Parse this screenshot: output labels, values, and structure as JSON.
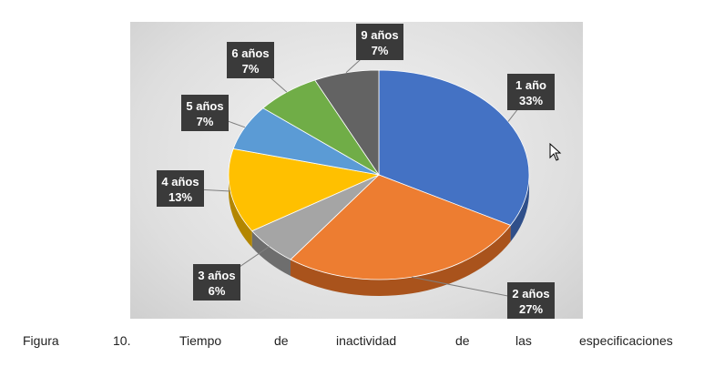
{
  "chart_data": {
    "type": "pie",
    "title": "",
    "slices": [
      {
        "label": "1 año",
        "percent_label": "33%",
        "value": 33,
        "color": "#4472c4",
        "side": "#2f4f8a"
      },
      {
        "label": "2 años",
        "percent_label": "27%",
        "value": 27,
        "color": "#ed7d31",
        "side": "#a9531c"
      },
      {
        "label": "3 años",
        "percent_label": "6%",
        "value": 6,
        "color": "#a5a5a5",
        "side": "#6e6e6e"
      },
      {
        "label": "4 años",
        "percent_label": "13%",
        "value": 13,
        "color": "#ffc000",
        "side": "#b38600"
      },
      {
        "label": "5 años",
        "percent_label": "7%",
        "value": 7,
        "color": "#5b9bd5",
        "side": "#3b6d99"
      },
      {
        "label": "6 años",
        "percent_label": "7%",
        "value": 7,
        "color": "#70ad47",
        "side": "#4c7a2e"
      },
      {
        "label": "9 años",
        "percent_label": "7%",
        "value": 7,
        "color": "#636363",
        "side": "#3d3d3d"
      }
    ],
    "legend": "none",
    "data_labels": "callouts"
  },
  "caption": {
    "words": [
      "Figura",
      "10.",
      "Tiempo",
      "de",
      "inactividad",
      "de",
      "las",
      "especificaciones"
    ]
  }
}
